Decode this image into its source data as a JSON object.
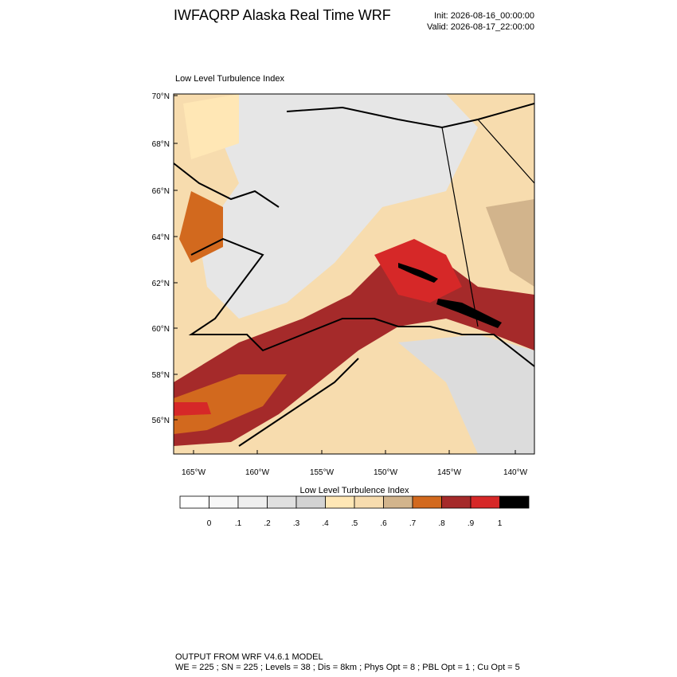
{
  "header": {
    "title": "IWFAQRP Alaska Real Time WRF",
    "init": "Init: 2026-08-16_00:00:00",
    "valid": "Valid: 2026-08-17_22:00:00"
  },
  "map": {
    "title": "Low Level Turbulence Index",
    "lat_labels": [
      "70°N",
      "68°N",
      "66°N",
      "64°N",
      "62°N",
      "60°N",
      "58°N",
      "56°N"
    ],
    "lon_labels": [
      "165°W",
      "160°W",
      "155°W",
      "150°W",
      "145°W",
      "140°W"
    ]
  },
  "colorbar": {
    "title": "Low Level Turbulence Index",
    "colors": [
      "#ffffff",
      "#f7f7f7",
      "#efefef",
      "#e0e0e0",
      "#d3d3d3",
      "#ffe7b5",
      "#f7dcae",
      "#d2b48c",
      "#d2691e",
      "#a52a2a",
      "#d62828",
      "#000000"
    ],
    "labels": [
      "0",
      ".1",
      ".2",
      ".3",
      ".4",
      ".5",
      ".6",
      ".7",
      ".8",
      ".9",
      "1"
    ]
  },
  "footer": {
    "line1": "OUTPUT FROM WRF V4.6.1 MODEL",
    "line2": "WE = 225 ; SN = 225 ; Levels = 38 ; Dis = 8km ; Phys Opt = 8 ; PBL Opt = 1 ; Cu Opt = 5"
  }
}
